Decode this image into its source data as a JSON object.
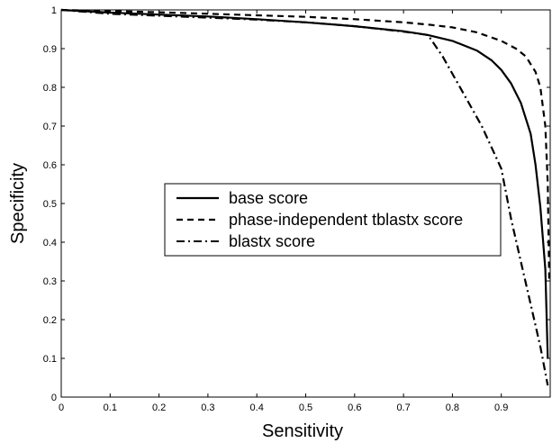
{
  "chart_data": {
    "type": "line",
    "title": "",
    "xlabel": "Sensitivity",
    "ylabel": "Specificity",
    "xlim": [
      0,
      1
    ],
    "ylim": [
      0,
      1
    ],
    "grid": false,
    "legend_placement": "center",
    "x_ticks": [
      "0",
      "0.1",
      "0.2",
      "0.3",
      "0.4",
      "0.5",
      "0.6",
      "0.7",
      "0.8",
      "0.9"
    ],
    "y_ticks": [
      "0",
      "0.1",
      "0.2",
      "0.3",
      "0.4",
      "0.5",
      "0.6",
      "0.7",
      "0.8",
      "0.9",
      "1"
    ],
    "series": [
      {
        "name": "base score",
        "style": "solid",
        "x": [
          0,
          0.1,
          0.2,
          0.3,
          0.4,
          0.5,
          0.6,
          0.7,
          0.75,
          0.8,
          0.85,
          0.88,
          0.9,
          0.92,
          0.94,
          0.96,
          0.97,
          0.98,
          0.99,
          0.995
        ],
        "y": [
          1,
          0.993,
          0.988,
          0.983,
          0.976,
          0.968,
          0.958,
          0.945,
          0.935,
          0.92,
          0.895,
          0.87,
          0.845,
          0.81,
          0.76,
          0.68,
          0.6,
          0.49,
          0.33,
          0.1
        ]
      },
      {
        "name": "phase-independent tblastx score",
        "style": "dashed",
        "x": [
          0,
          0.1,
          0.2,
          0.3,
          0.4,
          0.5,
          0.6,
          0.7,
          0.75,
          0.8,
          0.85,
          0.9,
          0.93,
          0.95,
          0.97,
          0.98,
          0.99,
          0.995,
          0.998
        ],
        "y": [
          1,
          0.997,
          0.994,
          0.99,
          0.986,
          0.982,
          0.976,
          0.968,
          0.962,
          0.955,
          0.942,
          0.92,
          0.9,
          0.88,
          0.84,
          0.8,
          0.7,
          0.55,
          0.3
        ]
      },
      {
        "name": "blastx score",
        "style": "dashdot",
        "x": [
          0,
          0.1,
          0.2,
          0.3,
          0.4,
          0.5,
          0.6,
          0.7,
          0.75,
          0.78,
          0.82,
          0.86,
          0.9,
          0.92,
          0.94,
          0.96,
          0.98,
          0.995
        ],
        "y": [
          1,
          0.99,
          0.985,
          0.98,
          0.975,
          0.968,
          0.958,
          0.944,
          0.935,
          0.88,
          0.79,
          0.7,
          0.59,
          0.46,
          0.35,
          0.24,
          0.13,
          0.03
        ]
      }
    ]
  }
}
